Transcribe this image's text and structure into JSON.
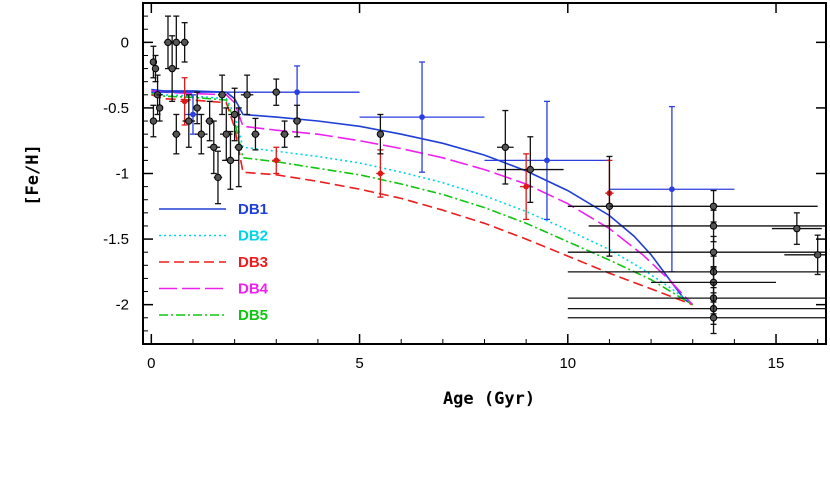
{
  "chart_data": {
    "type": "line",
    "title": "",
    "xlabel": "Age (Gyr)",
    "ylabel": "[Fe/H]",
    "xlim": [
      -0.2,
      16.2
    ],
    "ylim": [
      -2.3,
      0.3
    ],
    "x_ticks": [
      0,
      5,
      10,
      15
    ],
    "x_tick_labels": [
      "0",
      "5",
      "10",
      "15"
    ],
    "y_ticks": [
      0,
      -0.5,
      -1,
      -1.5,
      -2
    ],
    "y_tick_labels": [
      "0",
      "-0.5",
      "-1",
      "-1.5",
      "-2"
    ],
    "grid": false,
    "legend_position": "bottom-left",
    "series": [
      {
        "name": "DB1",
        "color": "#1f3fd6",
        "dash": "solid",
        "points": [
          [
            0,
            -0.36
          ],
          [
            0.3,
            -0.37
          ],
          [
            1,
            -0.37
          ],
          [
            1.8,
            -0.38
          ],
          [
            2.0,
            -0.43
          ],
          [
            2.2,
            -0.55
          ],
          [
            3,
            -0.57
          ],
          [
            4,
            -0.6
          ],
          [
            5,
            -0.64
          ],
          [
            6,
            -0.7
          ],
          [
            7,
            -0.77
          ],
          [
            8,
            -0.86
          ],
          [
            9,
            -0.98
          ],
          [
            10,
            -1.13
          ],
          [
            11,
            -1.32
          ],
          [
            11.6,
            -1.48
          ],
          [
            12,
            -1.62
          ],
          [
            12.4,
            -1.79
          ],
          [
            12.8,
            -1.96
          ],
          [
            13.0,
            -2.0
          ]
        ]
      },
      {
        "name": "DB2",
        "color": "#00d5e8",
        "dash": "2 3",
        "points": [
          [
            0,
            -0.38
          ],
          [
            0.3,
            -0.4
          ],
          [
            1,
            -0.41
          ],
          [
            1.8,
            -0.43
          ],
          [
            2.0,
            -0.55
          ],
          [
            2.2,
            -0.8
          ],
          [
            3,
            -0.83
          ],
          [
            4,
            -0.87
          ],
          [
            5,
            -0.92
          ],
          [
            6,
            -0.99
          ],
          [
            7,
            -1.07
          ],
          [
            8,
            -1.17
          ],
          [
            9,
            -1.29
          ],
          [
            10,
            -1.43
          ],
          [
            11,
            -1.58
          ],
          [
            11.8,
            -1.73
          ],
          [
            12.5,
            -1.88
          ],
          [
            13.0,
            -2.0
          ]
        ]
      },
      {
        "name": "DB3",
        "color": "#ee1c1c",
        "dash": "10 5",
        "points": [
          [
            0,
            -0.4
          ],
          [
            0.3,
            -0.43
          ],
          [
            1,
            -0.44
          ],
          [
            1.8,
            -0.46
          ],
          [
            2.0,
            -0.65
          ],
          [
            2.2,
            -0.99
          ],
          [
            3,
            -1.01
          ],
          [
            4,
            -1.06
          ],
          [
            5,
            -1.12
          ],
          [
            6,
            -1.19
          ],
          [
            7,
            -1.28
          ],
          [
            8,
            -1.38
          ],
          [
            9,
            -1.5
          ],
          [
            10,
            -1.63
          ],
          [
            11,
            -1.76
          ],
          [
            12,
            -1.88
          ],
          [
            13.0,
            -2.0
          ]
        ]
      },
      {
        "name": "DB4",
        "color": "#ee22ee",
        "dash": "18 5",
        "points": [
          [
            0,
            -0.37
          ],
          [
            0.3,
            -0.38
          ],
          [
            1,
            -0.39
          ],
          [
            1.8,
            -0.4
          ],
          [
            2.0,
            -0.46
          ],
          [
            2.2,
            -0.64
          ],
          [
            3,
            -0.67
          ],
          [
            4,
            -0.7
          ],
          [
            5,
            -0.75
          ],
          [
            6,
            -0.81
          ],
          [
            7,
            -0.88
          ],
          [
            8,
            -0.97
          ],
          [
            9,
            -1.08
          ],
          [
            10,
            -1.23
          ],
          [
            11,
            -1.42
          ],
          [
            11.8,
            -1.62
          ],
          [
            12.4,
            -1.8
          ],
          [
            13.0,
            -2.0
          ]
        ]
      },
      {
        "name": "DB5",
        "color": "#11c511",
        "dash": "9 3 2 3",
        "points": [
          [
            0,
            -0.39
          ],
          [
            0.3,
            -0.41
          ],
          [
            1,
            -0.42
          ],
          [
            1.8,
            -0.44
          ],
          [
            2.0,
            -0.6
          ],
          [
            2.2,
            -0.88
          ],
          [
            3,
            -0.91
          ],
          [
            4,
            -0.96
          ],
          [
            5,
            -1.01
          ],
          [
            6,
            -1.08
          ],
          [
            7,
            -1.16
          ],
          [
            8,
            -1.26
          ],
          [
            9,
            -1.38
          ],
          [
            10,
            -1.52
          ],
          [
            11,
            -1.66
          ],
          [
            12,
            -1.81
          ],
          [
            13.0,
            -2.0
          ]
        ]
      }
    ],
    "observations": [
      {
        "group": "blue",
        "color": "#2b3fe0",
        "points": [
          {
            "x": 3.5,
            "y": -0.38,
            "xerr": [
              3.5,
              1.5
            ],
            "yerr": 0.2
          },
          {
            "x": 6.5,
            "y": -0.57,
            "xerr": 1.5,
            "yerr": 0.42
          },
          {
            "x": 9.5,
            "y": -0.9,
            "xerr": 1.5,
            "yerr": 0.45
          },
          {
            "x": 12.5,
            "y": -1.12,
            "xerr": 1.5,
            "yerr": 0.63
          },
          {
            "x": 1.0,
            "y": -0.55,
            "xerr": 0.2,
            "yerr": 0.15
          }
        ]
      },
      {
        "group": "red",
        "color": "#e01818",
        "points": [
          {
            "x": 0.8,
            "y": -0.45,
            "xerr": 0.1,
            "yerr": 0.18
          },
          {
            "x": 3.0,
            "y": -0.9,
            "xerr": 0.1,
            "yerr": 0.1
          },
          {
            "x": 5.5,
            "y": -1.0,
            "xerr": 0.1,
            "yerr": 0.18
          },
          {
            "x": 9.0,
            "y": -1.1,
            "xerr": 0.15,
            "yerr": 0.25
          },
          {
            "x": 11.0,
            "y": -1.15,
            "xerr": 0.1,
            "yerr": 0.25
          }
        ]
      },
      {
        "group": "black",
        "color": "#111111",
        "points": [
          {
            "x": 0.05,
            "y": -0.15,
            "xerr": 0.05,
            "yerr": 0.12
          },
          {
            "x": 0.1,
            "y": -0.2,
            "xerr": 0.05,
            "yerr": 0.1
          },
          {
            "x": 0.15,
            "y": -0.4,
            "xerr": 0.05,
            "yerr": 0.15
          },
          {
            "x": 0.05,
            "y": -0.6,
            "xerr": 0.05,
            "yerr": 0.12
          },
          {
            "x": 0.2,
            "y": -0.5,
            "xerr": 0.05,
            "yerr": 0.1
          },
          {
            "x": 0.4,
            "y": 0.0,
            "xerr": 0.1,
            "yerr": 0.2
          },
          {
            "x": 0.6,
            "y": 0.0,
            "xerr": 0.1,
            "yerr": 0.2
          },
          {
            "x": 0.5,
            "y": -0.2,
            "xerr": 0.1,
            "yerr": 0.25
          },
          {
            "x": 0.8,
            "y": 0.0,
            "xerr": 0.1,
            "yerr": 0.15
          },
          {
            "x": 0.9,
            "y": -0.6,
            "xerr": 0.15,
            "yerr": 0.2
          },
          {
            "x": 0.6,
            "y": -0.7,
            "xerr": 0.1,
            "yerr": 0.15
          },
          {
            "x": 1.1,
            "y": -0.5,
            "xerr": 0.1,
            "yerr": 0.12
          },
          {
            "x": 1.2,
            "y": -0.7,
            "xerr": 0.15,
            "yerr": 0.15
          },
          {
            "x": 1.4,
            "y": -0.6,
            "xerr": 0.1,
            "yerr": 0.15
          },
          {
            "x": 1.5,
            "y": -0.8,
            "xerr": 0.15,
            "yerr": 0.2
          },
          {
            "x": 1.6,
            "y": -1.03,
            "xerr": 0.1,
            "yerr": 0.2
          },
          {
            "x": 1.7,
            "y": -0.4,
            "xerr": 0.1,
            "yerr": 0.15
          },
          {
            "x": 1.8,
            "y": -0.7,
            "xerr": 0.15,
            "yerr": 0.2
          },
          {
            "x": 1.9,
            "y": -0.9,
            "xerr": 0.2,
            "yerr": 0.22
          },
          {
            "x": 2.0,
            "y": -0.55,
            "xerr": 0.15,
            "yerr": 0.2
          },
          {
            "x": 2.1,
            "y": -0.8,
            "xerr": 0.1,
            "yerr": 0.3
          },
          {
            "x": 2.3,
            "y": -0.4,
            "xerr": 0.15,
            "yerr": 0.15
          },
          {
            "x": 2.5,
            "y": -0.7,
            "xerr": 0.1,
            "yerr": 0.12
          },
          {
            "x": 3.0,
            "y": -0.38,
            "xerr": 0.1,
            "yerr": 0.1
          },
          {
            "x": 3.2,
            "y": -0.7,
            "xerr": 0.1,
            "yerr": 0.1
          },
          {
            "x": 3.5,
            "y": -0.6,
            "xerr": 0.1,
            "yerr": 0.12
          },
          {
            "x": 5.5,
            "y": -0.7,
            "xerr": 0.05,
            "yerr": 0.15
          },
          {
            "x": 8.5,
            "y": -0.8,
            "xerr": 0.2,
            "yerr": 0.28
          },
          {
            "x": 9.1,
            "y": -0.97,
            "xerr": 0.8,
            "yerr": 0.25
          },
          {
            "x": 11.0,
            "y": -1.25,
            "xerr": 1.0,
            "yerr": 0.38
          },
          {
            "x": 13.5,
            "y": -1.25,
            "xerr": 2.5,
            "yerr": 0.12
          },
          {
            "x": 13.5,
            "y": -1.4,
            "xerr": 3.0,
            "yerr": 0.12
          },
          {
            "x": 13.5,
            "y": -1.6,
            "xerr": 3.5,
            "yerr": 0.12
          },
          {
            "x": 13.5,
            "y": -1.75,
            "xerr": 3.5,
            "yerr": 0.12
          },
          {
            "x": 13.5,
            "y": -1.83,
            "xerr": 1.5,
            "yerr": 0.12
          },
          {
            "x": 13.5,
            "y": -1.95,
            "xerr": 3.5,
            "yerr": 0.12
          },
          {
            "x": 13.5,
            "y": -2.03,
            "xerr": 3.5,
            "yerr": 0.12
          },
          {
            "x": 13.5,
            "y": -2.1,
            "xerr": 3.5,
            "yerr": 0.12
          },
          {
            "x": 15.5,
            "y": -1.42,
            "xerr": 0.6,
            "yerr": 0.12
          },
          {
            "x": 16.0,
            "y": -1.62,
            "xerr": 0.8,
            "yerr": 0.15
          }
        ]
      }
    ]
  }
}
